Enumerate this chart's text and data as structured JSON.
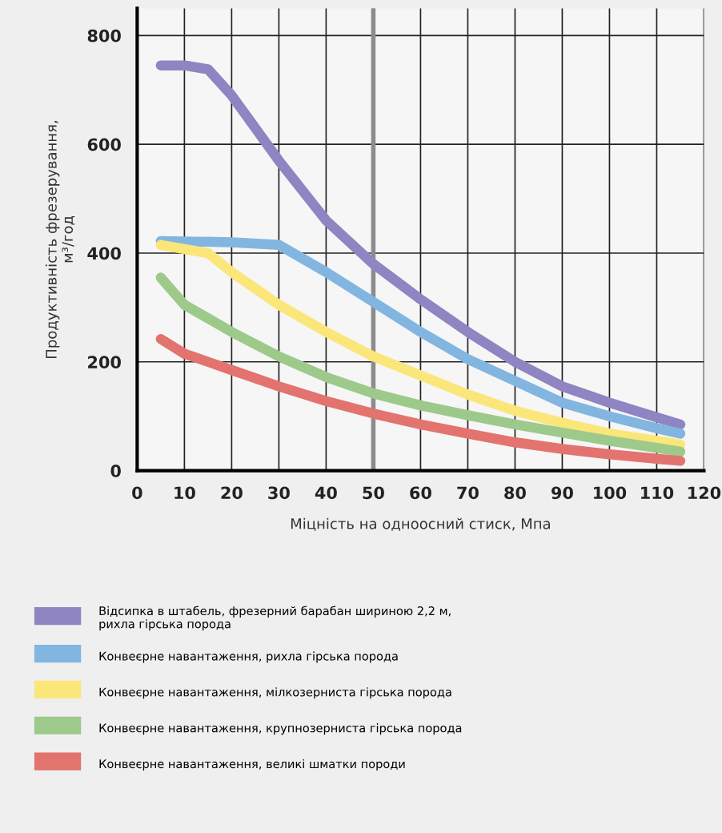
{
  "chart_data": {
    "type": "line",
    "xlabel": "Міцність на одноосний стиск, Мпа",
    "ylabel": "Продуктивність фрезерування,\nм³/год",
    "xlim": [
      0,
      120
    ],
    "ylim": [
      0,
      850
    ],
    "xticks": [
      0,
      10,
      20,
      30,
      40,
      50,
      60,
      70,
      80,
      90,
      100,
      110,
      120
    ],
    "yticks": [
      0,
      200,
      400,
      600,
      800
    ],
    "grid": true,
    "legend": "bottom left",
    "line_style": "solid",
    "ref_lines": [
      {
        "axis": "x",
        "value": 50,
        "color": "#8c8c8c"
      }
    ],
    "series": [
      {
        "name": "Відсипка в штабель, фрезерний барабан шириною 2,2 м,\nрихла гірська порода",
        "color": "#8f85c2",
        "x": [
          5,
          10,
          15,
          20,
          30,
          40,
          50,
          60,
          70,
          80,
          90,
          100,
          110,
          115
        ],
        "values": [
          745,
          745,
          738,
          690,
          570,
          460,
          380,
          315,
          255,
          200,
          155,
          125,
          98,
          85
        ]
      },
      {
        "name": "Конвеєрне навантаження, рихла гірська порода",
        "color": "#82b6e0",
        "x": [
          5,
          20,
          30,
          40,
          50,
          60,
          70,
          80,
          90,
          100,
          110,
          115
        ],
        "values": [
          422,
          420,
          415,
          365,
          310,
          255,
          205,
          165,
          125,
          100,
          78,
          68
        ]
      },
      {
        "name": "Конвеєрне навантаження, мілкозерниста гірська порода",
        "color": "#fbe67a",
        "x": [
          5,
          15,
          20,
          30,
          40,
          50,
          60,
          70,
          80,
          90,
          100,
          110,
          115
        ],
        "values": [
          415,
          400,
          365,
          305,
          255,
          210,
          175,
          140,
          110,
          88,
          68,
          55,
          48
        ]
      },
      {
        "name": "Конвеєрне навантаження, крупнозерниста гірська порода",
        "color": "#9dc98a",
        "x": [
          5,
          10,
          20,
          30,
          40,
          50,
          60,
          70,
          80,
          90,
          100,
          110,
          115
        ],
        "values": [
          355,
          305,
          255,
          210,
          172,
          142,
          120,
          102,
          85,
          70,
          55,
          42,
          35
        ]
      },
      {
        "name": "Конвеєрне навантаження, великі шматки породи",
        "color": "#e3736f",
        "x": [
          5,
          10,
          20,
          30,
          40,
          50,
          60,
          70,
          80,
          90,
          100,
          110,
          115
        ],
        "values": [
          242,
          215,
          185,
          155,
          128,
          105,
          85,
          68,
          52,
          40,
          30,
          22,
          18
        ]
      }
    ]
  }
}
